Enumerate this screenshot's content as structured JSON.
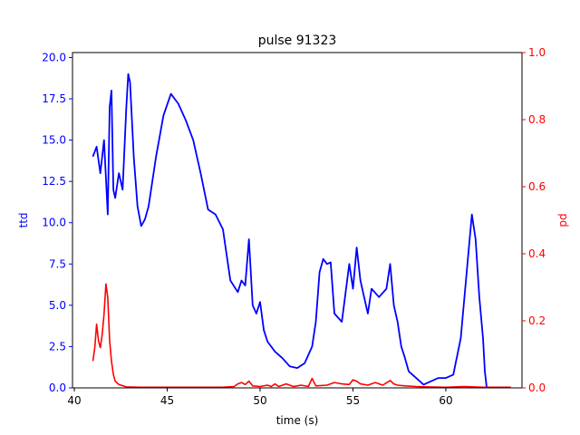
{
  "chart_data": {
    "type": "line",
    "title": "pulse 91323",
    "xlabel": "time (s)",
    "ylabel_left": "ttd",
    "ylabel_right": "pd",
    "xlim": [
      39.9,
      64.1
    ],
    "ylim_left": [
      0,
      20.3
    ],
    "ylim_right": [
      0,
      1.0
    ],
    "x_ticks": [
      40,
      45,
      50,
      55,
      60
    ],
    "y_ticks_left": [
      0.0,
      2.5,
      5.0,
      7.5,
      10.0,
      12.5,
      15.0,
      17.5,
      20.0
    ],
    "y_ticks_right": [
      0.0,
      0.2,
      0.4,
      0.6,
      0.8,
      1.0
    ],
    "grid": false,
    "colors": {
      "left_axis": "#0000ff",
      "right_axis": "#ff0000"
    },
    "series": [
      {
        "axis": "left",
        "color": "#0000ff",
        "x": [
          41.0,
          41.2,
          41.4,
          41.6,
          41.8,
          41.9,
          42.0,
          42.1,
          42.2,
          42.4,
          42.6,
          42.8,
          42.9,
          43.0,
          43.2,
          43.4,
          43.6,
          43.8,
          44.0,
          44.4,
          44.8,
          45.2,
          45.6,
          46.0,
          46.4,
          46.8,
          47.2,
          47.6,
          48.0,
          48.4,
          48.8,
          49.0,
          49.2,
          49.4,
          49.6,
          49.8,
          50.0,
          50.2,
          50.4,
          50.8,
          51.2,
          51.6,
          52.0,
          52.4,
          52.8,
          53.0,
          53.2,
          53.4,
          53.6,
          53.8,
          54.0,
          54.4,
          54.8,
          55.0,
          55.2,
          55.4,
          55.6,
          55.8,
          56.0,
          56.4,
          56.8,
          57.0,
          57.2,
          57.4,
          57.6,
          57.8,
          58.0,
          58.4,
          58.8,
          59.2,
          59.6,
          60.0,
          60.4,
          60.8,
          61.2,
          61.4,
          61.6,
          61.8,
          62.0,
          62.1,
          62.2
        ],
        "values": [
          14.0,
          14.6,
          13.0,
          15.0,
          10.5,
          17.0,
          18.0,
          12.0,
          11.5,
          13.0,
          12.0,
          17.0,
          19.0,
          18.5,
          14.0,
          11.0,
          9.8,
          10.2,
          11.0,
          14.0,
          16.5,
          17.8,
          17.2,
          16.2,
          15.0,
          13.0,
          10.8,
          10.5,
          9.6,
          6.5,
          5.8,
          6.5,
          6.2,
          9.0,
          5.0,
          4.5,
          5.2,
          3.5,
          2.8,
          2.2,
          1.8,
          1.3,
          1.2,
          1.5,
          2.5,
          4.0,
          7.0,
          7.8,
          7.5,
          7.6,
          4.5,
          4.0,
          7.5,
          6.0,
          8.5,
          6.5,
          5.5,
          4.5,
          6.0,
          5.5,
          6.0,
          7.5,
          5.0,
          4.0,
          2.5,
          1.8,
          1.0,
          0.6,
          0.2,
          0.4,
          0.6,
          0.6,
          0.8,
          3.0,
          8.0,
          10.5,
          9.0,
          5.5,
          3.0,
          1.0,
          0.0
        ]
      },
      {
        "axis": "right",
        "color": "#ff0000",
        "x": [
          41.0,
          41.1,
          41.2,
          41.3,
          41.4,
          41.5,
          41.6,
          41.7,
          41.8,
          41.9,
          42.0,
          42.1,
          42.2,
          42.4,
          42.8,
          43.5,
          45.0,
          46.0,
          47.0,
          48.0,
          48.6,
          48.8,
          49.0,
          49.2,
          49.4,
          49.6,
          50.0,
          50.4,
          50.6,
          50.8,
          51.0,
          51.4,
          51.8,
          52.0,
          52.2,
          52.6,
          52.8,
          53.0,
          53.6,
          54.0,
          54.4,
          54.8,
          55.0,
          55.2,
          55.4,
          55.8,
          56.2,
          56.6,
          57.0,
          57.2,
          57.4,
          57.8,
          58.4,
          59.0,
          60.0,
          61.0,
          62.0,
          62.6,
          63.5
        ],
        "values": [
          0.08,
          0.12,
          0.19,
          0.14,
          0.12,
          0.16,
          0.22,
          0.31,
          0.27,
          0.14,
          0.08,
          0.04,
          0.02,
          0.01,
          0.003,
          0.002,
          0.002,
          0.002,
          0.002,
          0.002,
          0.004,
          0.012,
          0.016,
          0.01,
          0.02,
          0.006,
          0.004,
          0.008,
          0.004,
          0.012,
          0.004,
          0.012,
          0.004,
          0.006,
          0.008,
          0.004,
          0.028,
          0.006,
          0.008,
          0.016,
          0.012,
          0.01,
          0.024,
          0.02,
          0.012,
          0.008,
          0.016,
          0.008,
          0.022,
          0.012,
          0.008,
          0.006,
          0.004,
          0.003,
          0.002,
          0.004,
          0.002,
          0.002,
          0.002
        ]
      }
    ]
  }
}
